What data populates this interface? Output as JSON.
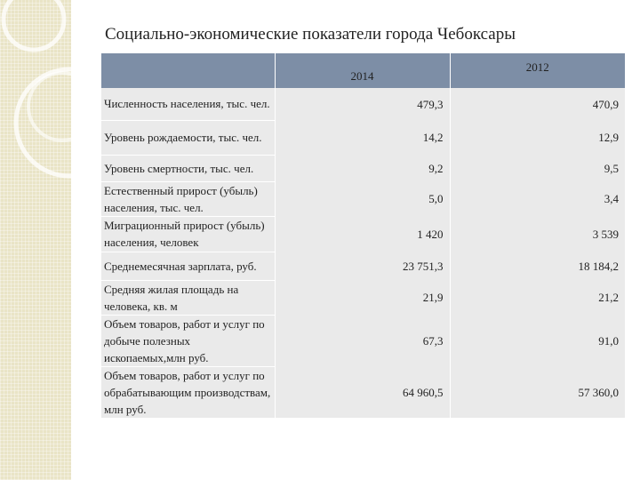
{
  "title": "Социально-экономические показатели города Чебоксары",
  "header": {
    "col_year_1": "2014",
    "col_year_2": "2012"
  },
  "rows": [
    {
      "label": "Численность населения, тыс. чел.",
      "v2014": "479,3",
      "v2012": "470,9"
    },
    {
      "label": "Уровень рождаемости, тыс. чел.",
      "v2014": "14,2",
      "v2012": "12,9"
    },
    {
      "label": "Уровень смертности, тыс. чел.",
      "v2014": "9,2",
      "v2012": "9,5"
    },
    {
      "label": "Естественный прирост (убыль) населения, тыс. чел.",
      "v2014": "5,0",
      "v2012": "3,4"
    },
    {
      "label": "Миграционный прирост (убыль) населения, человек",
      "v2014": "1 420",
      "v2012": "3 539"
    },
    {
      "label": "Среднемесячная зарплата, руб.",
      "v2014": "23 751,3",
      "v2012": "18 184,2"
    },
    {
      "label": "Средняя жилая площадь на человека, кв. м",
      "v2014": "21,9",
      "v2012": "21,2"
    },
    {
      "label": "Объем товаров, работ и услуг по добыче полезных ископаемых,млн руб.",
      "v2014": "67,3",
      "v2012": "91,0"
    },
    {
      "label": "Объем товаров, работ и услуг по обрабатывающим производствам, млн руб.",
      "v2014": "64 960,5",
      "v2012": "57 360,0"
    }
  ]
}
